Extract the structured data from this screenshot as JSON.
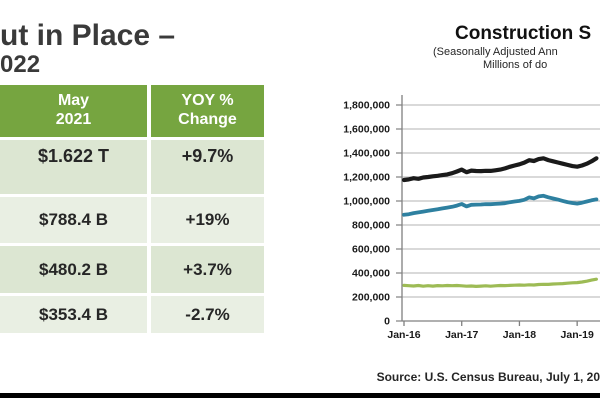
{
  "page": {
    "title_line1": "ut in Place –",
    "title_line2": "022"
  },
  "table": {
    "header": [
      {
        "line1": "May",
        "line2": "2021"
      },
      {
        "line1": "YOY %",
        "line2": "Change"
      }
    ],
    "rows": [
      {
        "value": "$1.622 T",
        "yoy": "+9.7%"
      },
      {
        "value": "$788.4 B",
        "yoy": "+19%"
      },
      {
        "value": "$480.2 B",
        "yoy": "+3.7%"
      },
      {
        "value": "$353.4 B",
        "yoy": "-2.7%"
      }
    ],
    "header_color": "#76a540",
    "band_color_a": "#dce6d2",
    "band_color_b": "#e9efe3"
  },
  "chart": {
    "title": "Construction S",
    "subtitle_line1": "(Seasonally Adjusted Ann",
    "subtitle_line2": "Millions of do",
    "source": "Source: U.S. Census Bureau, July 1, 20"
  },
  "footer": {
    "bar_color": "#000000"
  },
  "chart_data": {
    "type": "line",
    "title": "Construction S",
    "subtitle": "(Seasonally Adjusted Ann... Millions of do...",
    "x_start": "Jan-16",
    "x_interval": "monthly",
    "x_visible_through": "May-19",
    "x_ticks": [
      {
        "label": "Jan-16",
        "month": 0
      },
      {
        "label": "Jan-17",
        "month": 12
      },
      {
        "label": "Jan-18",
        "month": 24
      },
      {
        "label": "Jan-19",
        "month": 36
      }
    ],
    "y_ticks": [
      0,
      200000,
      400000,
      600000,
      800000,
      1000000,
      1200000,
      1400000,
      1600000,
      1800000
    ],
    "ylim": [
      0,
      1900000
    ],
    "grid": true,
    "legend": "none visible",
    "colors": {
      "gridline": "#b3b3b3",
      "axis": "#808080",
      "tick_text": "#1a1a1a"
    },
    "series": [
      {
        "name": "black",
        "color": "#1a1a1a",
        "width": 4.2,
        "values": [
          1175000,
          1180000,
          1190000,
          1185000,
          1196000,
          1200000,
          1206000,
          1210000,
          1216000,
          1222000,
          1232000,
          1246000,
          1262000,
          1240000,
          1253000,
          1250000,
          1249000,
          1252000,
          1251000,
          1256000,
          1262000,
          1272000,
          1285000,
          1296000,
          1306000,
          1320000,
          1340000,
          1333000,
          1349000,
          1356000,
          1341000,
          1331000,
          1321000,
          1311000,
          1301000,
          1291000,
          1286000,
          1296000,
          1311000,
          1331000,
          1356000
        ]
      },
      {
        "name": "teal",
        "color": "#2e80a0",
        "width": 3.8,
        "values": [
          885000,
          890000,
          899000,
          905000,
          912000,
          918000,
          925000,
          931000,
          938000,
          945000,
          952000,
          962000,
          975000,
          955000,
          968000,
          970000,
          971000,
          974000,
          973000,
          976000,
          978000,
          982000,
          990000,
          996000,
          1001000,
          1010000,
          1030000,
          1022000,
          1038000,
          1043000,
          1031000,
          1021000,
          1012000,
          1001000,
          991000,
          983000,
          978000,
          986000,
          996000,
          1006000,
          1013000
        ]
      },
      {
        "name": "green",
        "color": "#9dbb55",
        "width": 3.2,
        "values": [
          297000,
          294000,
          292000,
          296000,
          290000,
          294000,
          291000,
          295000,
          293000,
          296000,
          294000,
          296000,
          293000,
          290000,
          292000,
          288000,
          291000,
          293000,
          290000,
          293000,
          296000,
          295000,
          297000,
          298000,
          300000,
          298000,
          302000,
          300000,
          304000,
          306000,
          305000,
          308000,
          310000,
          312000,
          315000,
          318000,
          320000,
          325000,
          332000,
          341000,
          348000
        ]
      }
    ]
  }
}
